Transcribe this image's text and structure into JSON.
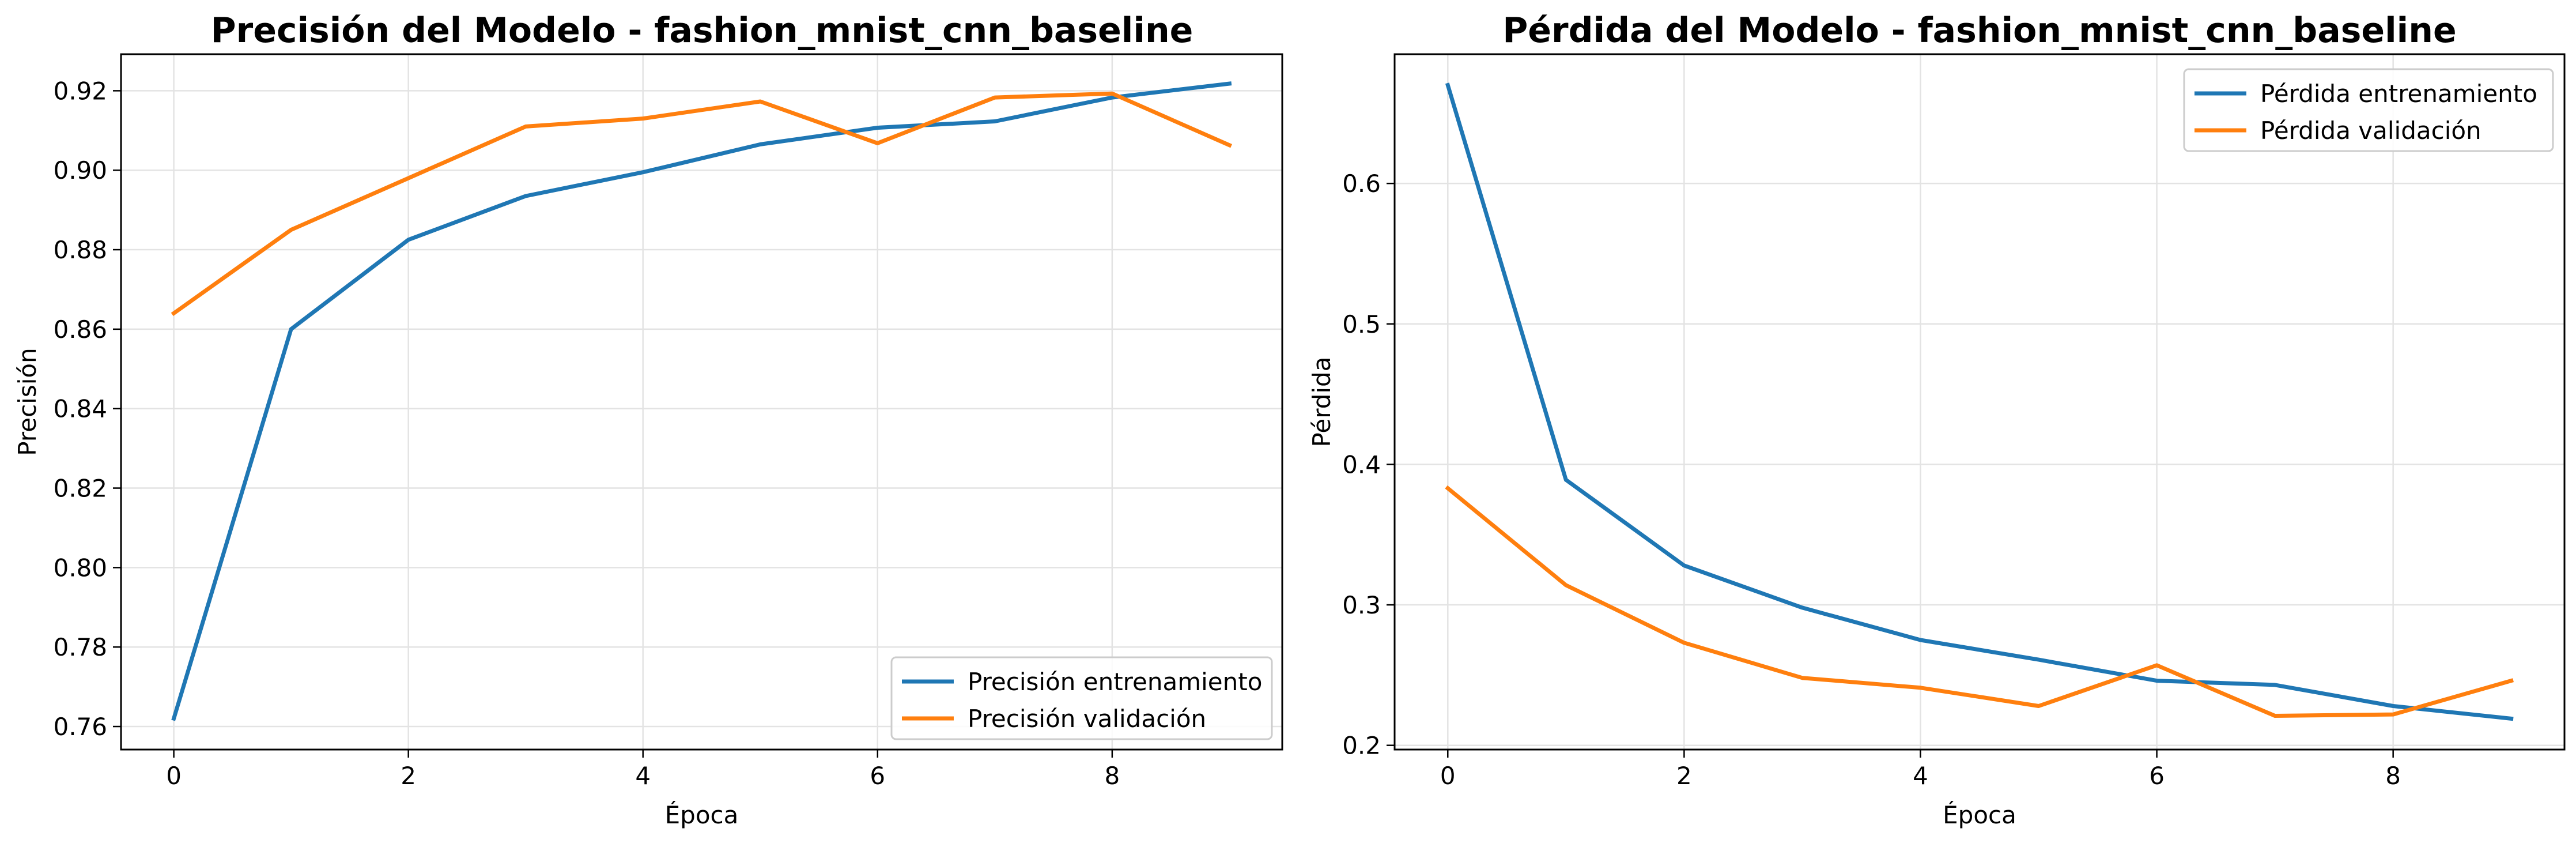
{
  "chart_data": [
    {
      "type": "line",
      "title": "Precisión del Modelo - fashion_mnist_cnn_baseline",
      "xlabel": "Época",
      "ylabel": "Precisión",
      "x": [
        0,
        1,
        2,
        3,
        4,
        5,
        6,
        7,
        8,
        9
      ],
      "xlim": [
        -0.45,
        9.45
      ],
      "ylim": [
        0.7542,
        0.9292
      ],
      "xticks": [
        0,
        2,
        4,
        6,
        8
      ],
      "xtick_labels": [
        "0",
        "2",
        "4",
        "6",
        "8"
      ],
      "yticks": [
        0.76,
        0.78,
        0.8,
        0.82,
        0.84,
        0.86,
        0.88,
        0.9,
        0.92
      ],
      "ytick_labels": [
        "0.76",
        "0.78",
        "0.80",
        "0.82",
        "0.84",
        "0.86",
        "0.88",
        "0.90",
        "0.92"
      ],
      "grid": true,
      "legend_position": "lower-right",
      "series": [
        {
          "name": "Precisión entrenamiento",
          "color": "#1f77b4",
          "values": [
            0.762,
            0.86,
            0.8825,
            0.8935,
            0.8995,
            0.9065,
            0.9107,
            0.9123,
            0.9183,
            0.9218
          ]
        },
        {
          "name": "Precisión validación",
          "color": "#ff7f0e",
          "values": [
            0.864,
            0.885,
            0.898,
            0.911,
            0.913,
            0.9173,
            0.9068,
            0.9183,
            0.9193,
            0.9063
          ]
        }
      ]
    },
    {
      "type": "line",
      "title": "Pérdida del Modelo - fashion_mnist_cnn_baseline",
      "xlabel": "Época",
      "ylabel": "Pérdida",
      "x": [
        0,
        1,
        2,
        3,
        4,
        5,
        6,
        7,
        8,
        9
      ],
      "xlim": [
        -0.45,
        9.45
      ],
      "ylim": [
        0.197,
        0.692
      ],
      "xticks": [
        0,
        2,
        4,
        6,
        8
      ],
      "xtick_labels": [
        "0",
        "2",
        "4",
        "6",
        "8"
      ],
      "yticks": [
        0.2,
        0.3,
        0.4,
        0.5,
        0.6
      ],
      "ytick_labels": [
        "0.2",
        "0.3",
        "0.4",
        "0.5",
        "0.6"
      ],
      "grid": true,
      "legend_position": "upper-right",
      "series": [
        {
          "name": "Pérdida entrenamiento",
          "color": "#1f77b4",
          "values": [
            0.67,
            0.389,
            0.328,
            0.298,
            0.275,
            0.261,
            0.246,
            0.243,
            0.228,
            0.219
          ]
        },
        {
          "name": "Pérdida validación",
          "color": "#ff7f0e",
          "values": [
            0.383,
            0.314,
            0.273,
            0.248,
            0.241,
            0.228,
            0.257,
            0.221,
            0.222,
            0.246
          ]
        }
      ]
    }
  ]
}
